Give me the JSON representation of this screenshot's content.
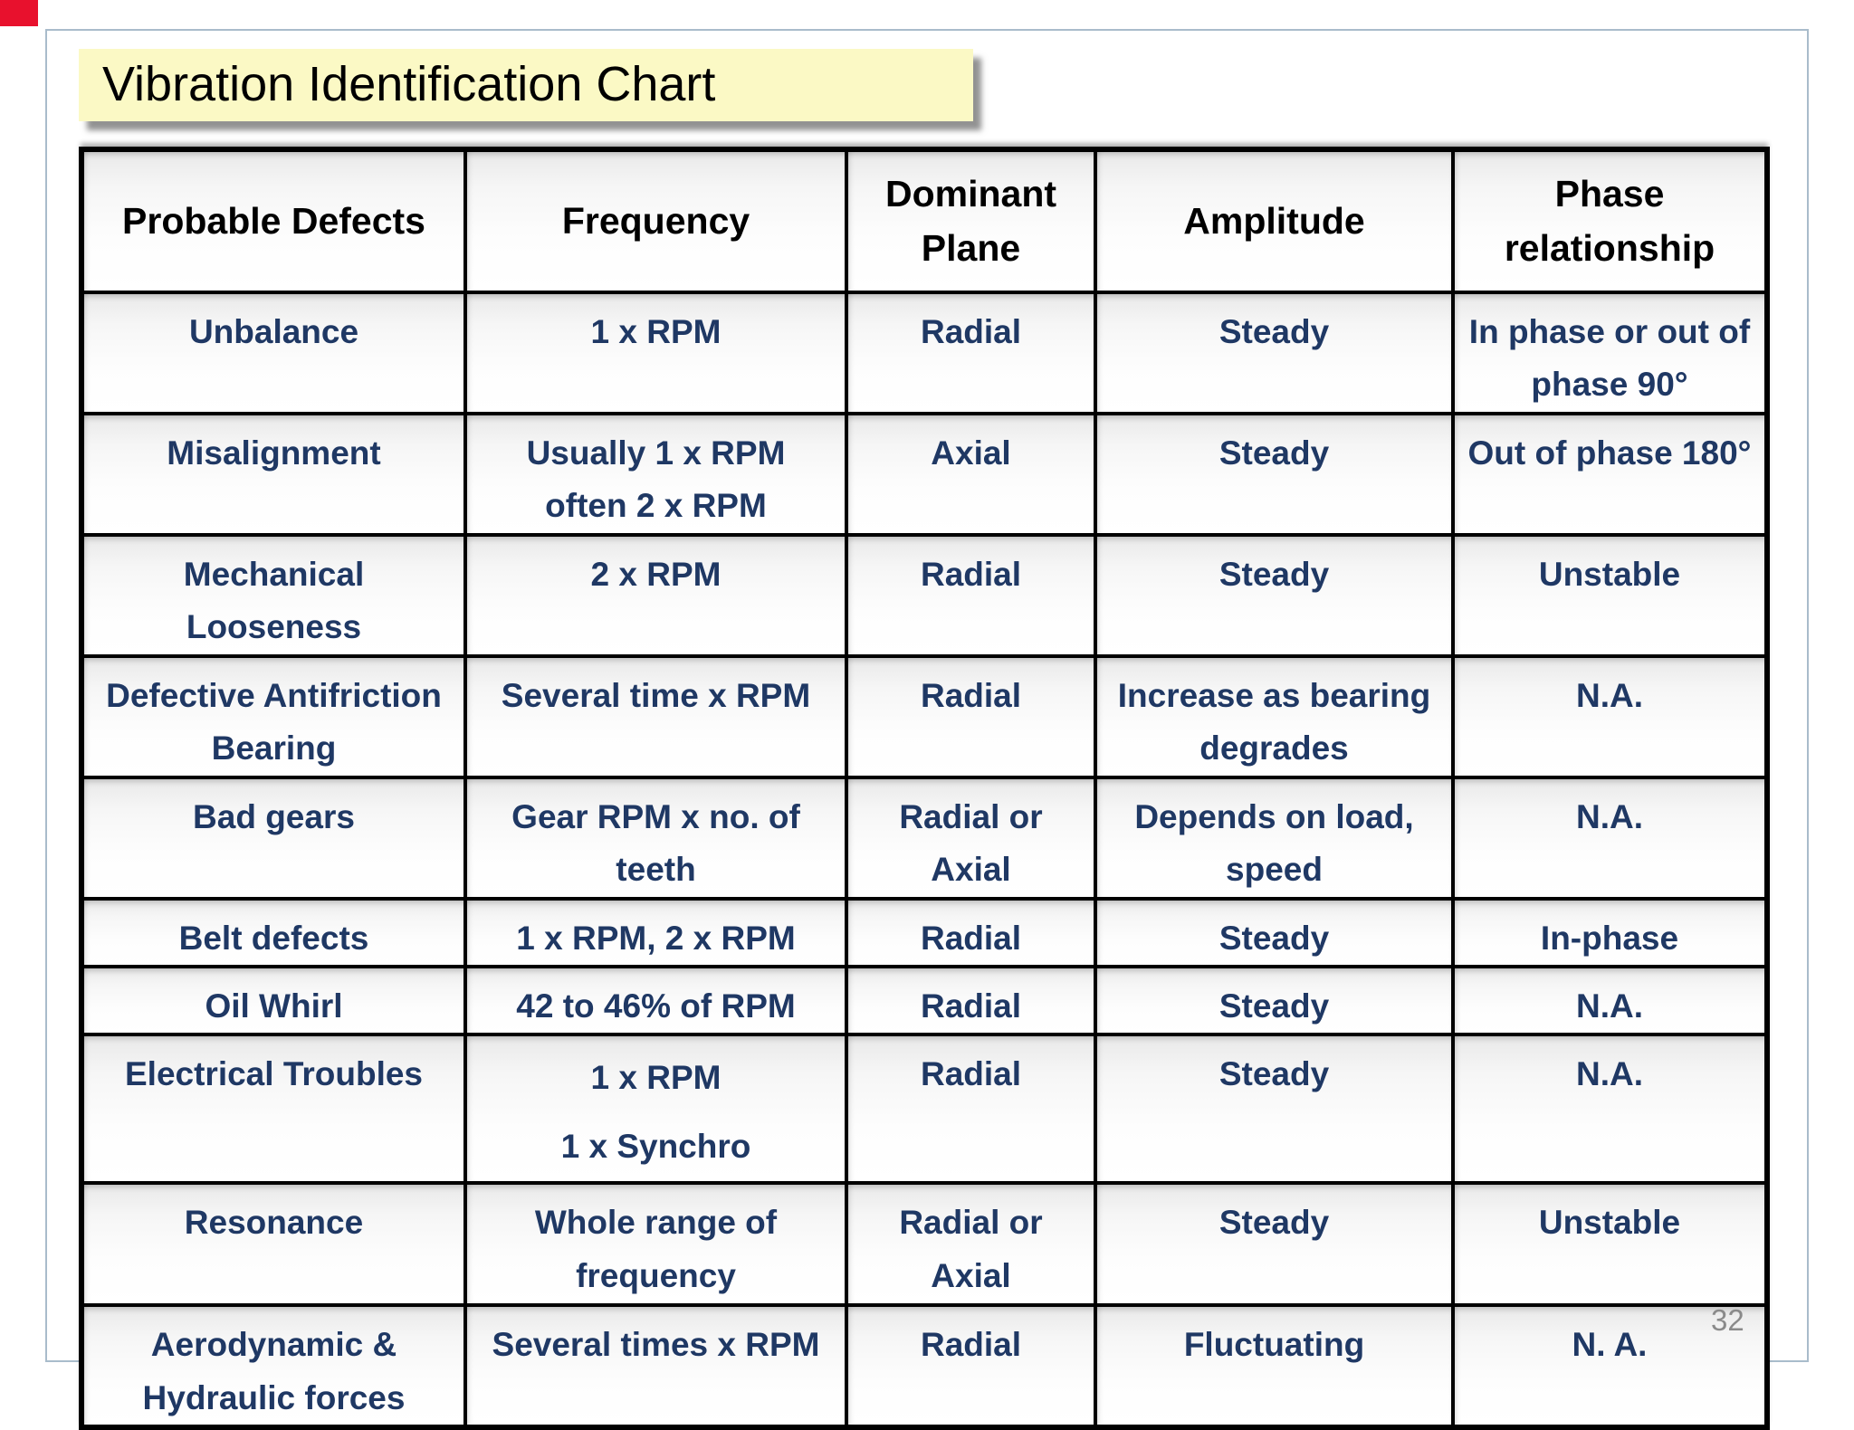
{
  "slide": {
    "title": "Vibration Identification Chart",
    "page_number": "32"
  },
  "table": {
    "columns": [
      "Probable Defects",
      "Frequency",
      "Dominant\nPlane",
      "Amplitude",
      "Phase\nrelationship"
    ],
    "rows": [
      [
        "Unbalance",
        "1 x RPM",
        "Radial",
        "Steady",
        "In phase or out of\nphase 90°"
      ],
      [
        "Misalignment",
        "Usually 1 x RPM\noften 2 x RPM",
        "Axial",
        "Steady",
        "Out of phase 180°"
      ],
      [
        "Mechanical\nLooseness",
        "2 x RPM",
        "Radial",
        "Steady",
        "Unstable"
      ],
      [
        "Defective Antifriction\nBearing",
        "Several time x RPM",
        "Radial",
        "Increase as bearing\ndegrades",
        "N.A."
      ],
      [
        "Bad gears",
        "Gear RPM x no. of\nteeth",
        "Radial or\nAxial",
        "Depends on load,\nspeed",
        "N.A."
      ],
      [
        "Belt defects",
        "1 x RPM, 2 x RPM",
        "Radial",
        "Steady",
        "In-phase"
      ],
      [
        "Oil Whirl",
        "42 to 46% of RPM",
        "Radial",
        "Steady",
        "N.A."
      ],
      [
        "Electrical Troubles",
        "1 x RPM\n1 x Synchro",
        "Radial",
        "Steady",
        "N.A."
      ],
      [
        "Resonance",
        "Whole range of\nfrequency",
        "Radial or\nAxial",
        "Steady",
        "Unstable"
      ],
      [
        "Aerodynamic &\nHydraulic forces",
        "Several times x RPM",
        "Radial",
        "Fluctuating",
        "N. A."
      ]
    ]
  },
  "colors": {
    "title_background": "#FBF9C5",
    "title_text": "#000000",
    "header_text": "#000000",
    "body_text": "#1F3864",
    "table_border": "#000000",
    "slide_border": "#A9BCCB",
    "page_number": "#8A8A8A",
    "corner_mark": "#E8112D"
  }
}
